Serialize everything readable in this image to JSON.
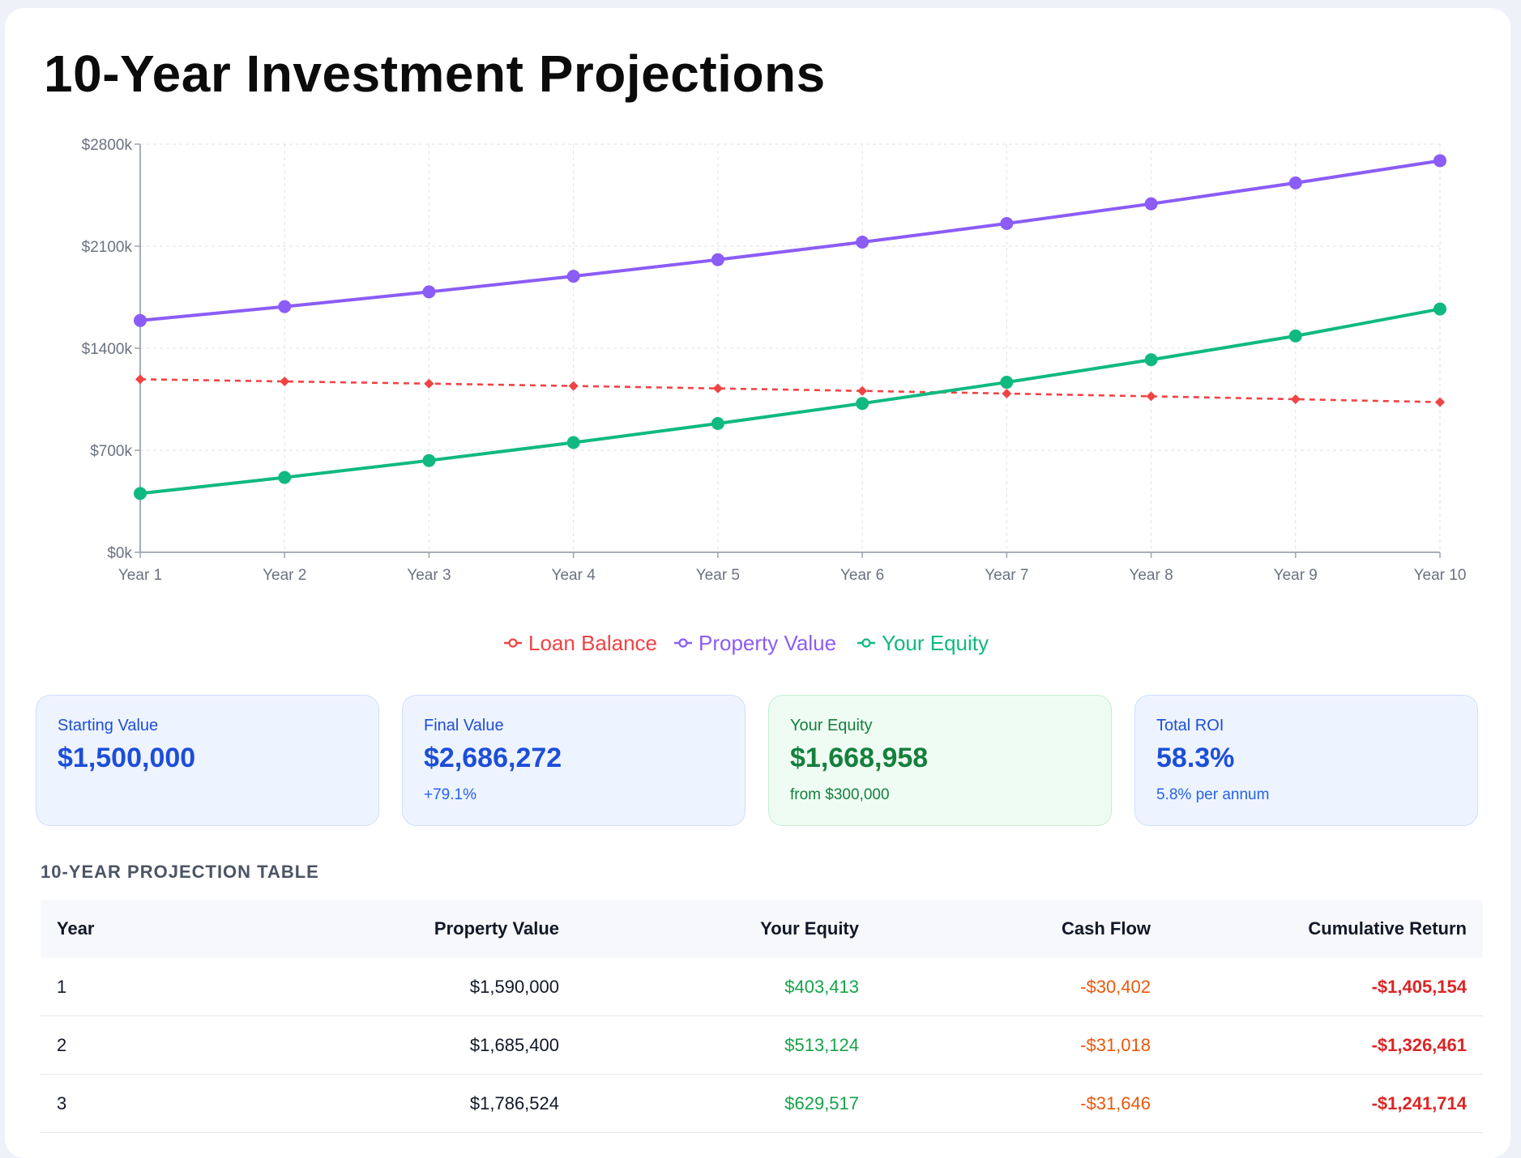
{
  "title": "10-Year Investment Projections",
  "colors": {
    "loan": "#ef4444",
    "property": "#8b5cf6",
    "equity": "#10b981",
    "grid": "#e5e7eb",
    "axis": "#9ca3af"
  },
  "chart_data": {
    "type": "line",
    "title": "",
    "xlabel": "",
    "ylabel": "",
    "categories": [
      "Year 1",
      "Year 2",
      "Year 3",
      "Year 4",
      "Year 5",
      "Year 6",
      "Year 7",
      "Year 8",
      "Year 9",
      "Year 10"
    ],
    "y_ticks": [
      0,
      700,
      1400,
      2100,
      2800
    ],
    "y_tick_labels": [
      "$0k",
      "$700k",
      "$1400k",
      "$2100k",
      "$2800k"
    ],
    "ylim": [
      0,
      2800
    ],
    "grid": true,
    "legend": "bottom-center",
    "series": [
      {
        "name": "Loan Balance",
        "key": "loan",
        "style": "dashed",
        "values": [
          1187,
          1172,
          1157,
          1141,
          1124,
          1107,
          1089,
          1070,
          1050,
          1030
        ]
      },
      {
        "name": "Property Value",
        "key": "property",
        "style": "solid",
        "values": [
          1590,
          1685.4,
          1786.5,
          1893.7,
          2007.3,
          2127.7,
          2255.4,
          2390.7,
          2534.1,
          2686.3
        ]
      },
      {
        "name": "Your Equity",
        "key": "equity",
        "style": "solid",
        "values": [
          403.4,
          513.1,
          629.5,
          752.7,
          883.3,
          1021.1,
          1166.4,
          1320.7,
          1484.1,
          1669.0
        ]
      }
    ]
  },
  "stats": [
    {
      "label": "Starting Value",
      "value": "$1,500,000",
      "sub": ""
    },
    {
      "label": "Final Value",
      "value": "$2,686,272",
      "sub": "+79.1%"
    },
    {
      "label": "Your Equity",
      "value": "$1,668,958",
      "sub": "from $300,000"
    },
    {
      "label": "Total ROI",
      "value": "58.3%",
      "sub": "5.8% per annum"
    }
  ],
  "table": {
    "heading": "10-YEAR PROJECTION TABLE",
    "columns": [
      "Year",
      "Property Value",
      "Your Equity",
      "Cash Flow",
      "Cumulative Return"
    ],
    "rows": [
      [
        "1",
        "$1,590,000",
        "$403,413",
        "-$30,402",
        "-$1,405,154"
      ],
      [
        "2",
        "$1,685,400",
        "$513,124",
        "-$31,018",
        "-$1,326,461"
      ],
      [
        "3",
        "$1,786,524",
        "$629,517",
        "-$31,646",
        "-$1,241,714"
      ]
    ]
  }
}
